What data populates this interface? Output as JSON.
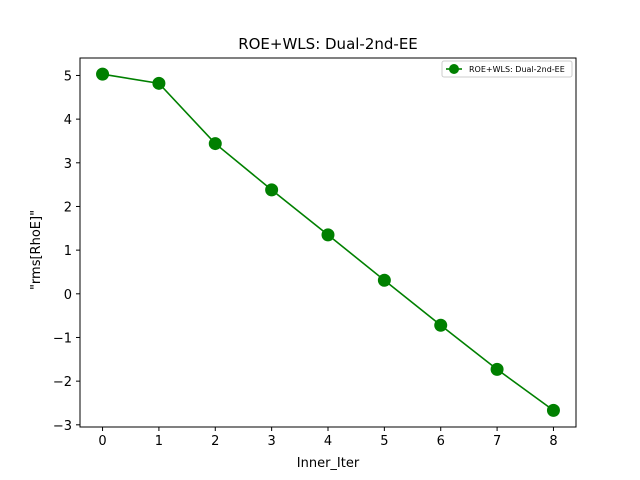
{
  "chart_data": {
    "type": "line",
    "title": "ROE+WLS: Dual-2nd-EE",
    "xlabel": "Inner_Iter",
    "ylabel": "\"rms[RhoE]\"",
    "x": [
      0,
      1,
      2,
      3,
      4,
      5,
      6,
      7,
      8
    ],
    "series": [
      {
        "name": "ROE+WLS: Dual-2nd-EE",
        "values": [
          5.03,
          4.82,
          3.44,
          2.38,
          1.35,
          0.31,
          -0.72,
          -1.73,
          -2.67
        ],
        "color": "#008000",
        "marker": "circle"
      }
    ],
    "xticks": [
      0,
      1,
      2,
      3,
      4,
      5,
      6,
      7,
      8
    ],
    "yticks": [
      -3,
      -2,
      -1,
      0,
      1,
      2,
      3,
      4,
      5
    ],
    "xtick_labels": [
      "0",
      "1",
      "2",
      "3",
      "4",
      "5",
      "6",
      "7",
      "8"
    ],
    "ytick_labels": [
      "−3",
      "−2",
      "−1",
      "0",
      "1",
      "2",
      "3",
      "4",
      "5"
    ],
    "xlim": [
      -0.4,
      8.4
    ],
    "ylim": [
      -3.05,
      5.4
    ],
    "grid": false,
    "legend_position": "top-right"
  }
}
